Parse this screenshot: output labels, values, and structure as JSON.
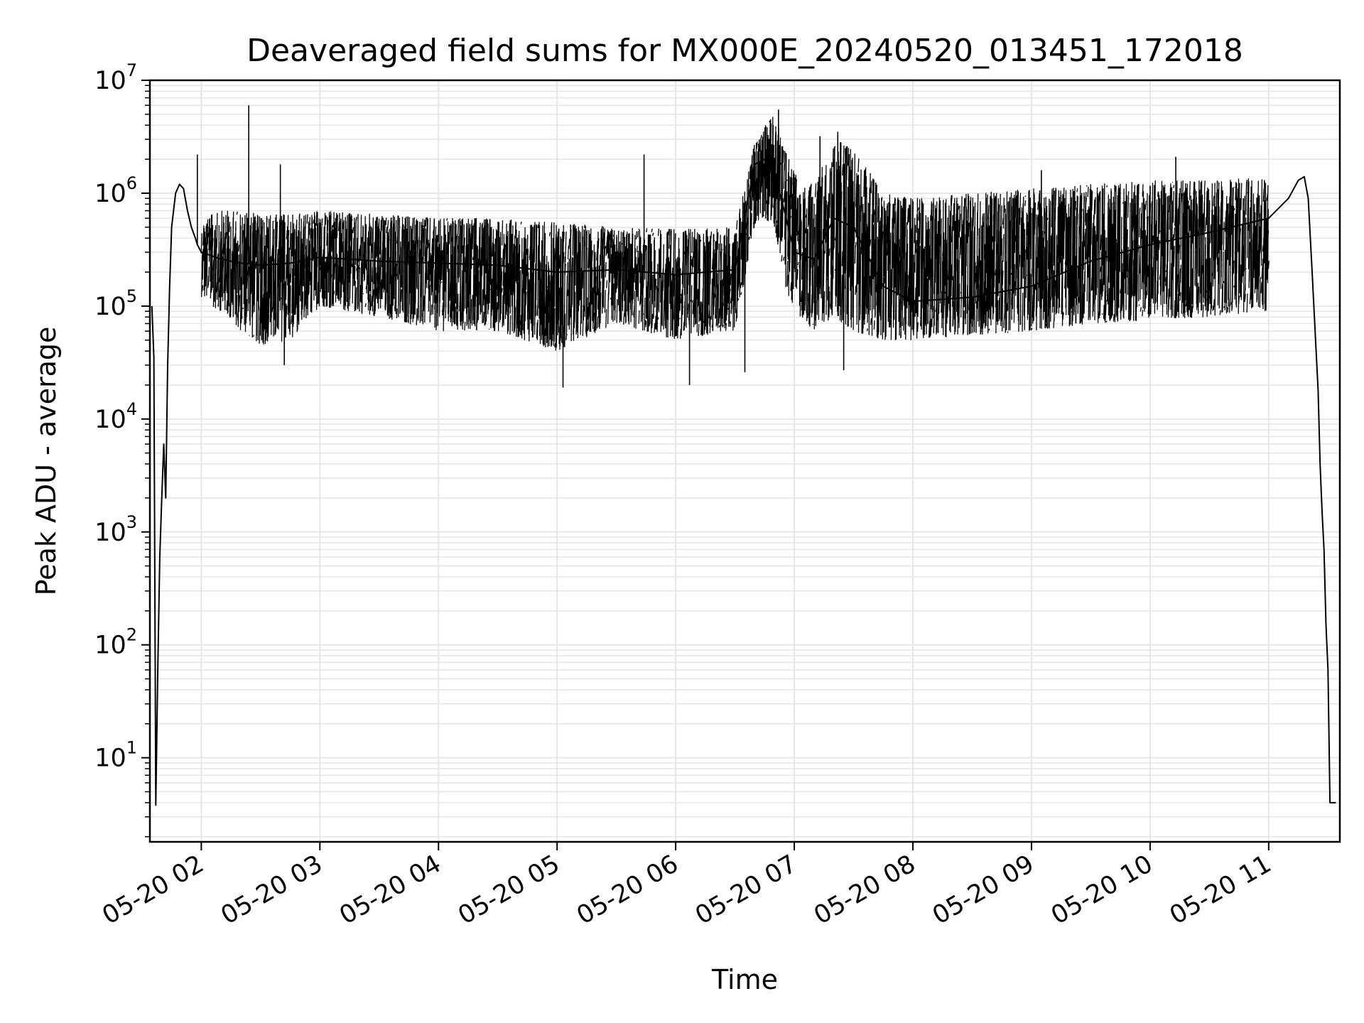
{
  "chart_data": {
    "type": "line",
    "title": "Deaveraged field sums for MX000E_20240520_013451_172018",
    "xlabel": "Time",
    "ylabel": "Peak ADU - average",
    "yscale": "log",
    "ylim": [
      1.8,
      10000000
    ],
    "xlim": [
      "2024-05-20 01:34",
      "2024-05-20 11:36"
    ],
    "grid": true,
    "line_color": "#000000",
    "grid_color": "#e6e6e6",
    "x_ticks": [
      {
        "t": "2024-05-20 02:00",
        "label": "05-20 02"
      },
      {
        "t": "2024-05-20 03:00",
        "label": "05-20 03"
      },
      {
        "t": "2024-05-20 04:00",
        "label": "05-20 04"
      },
      {
        "t": "2024-05-20 05:00",
        "label": "05-20 05"
      },
      {
        "t": "2024-05-20 06:00",
        "label": "05-20 06"
      },
      {
        "t": "2024-05-20 07:00",
        "label": "05-20 07"
      },
      {
        "t": "2024-05-20 08:00",
        "label": "05-20 08"
      },
      {
        "t": "2024-05-20 09:00",
        "label": "05-20 09"
      },
      {
        "t": "2024-05-20 10:00",
        "label": "05-20 10"
      },
      {
        "t": "2024-05-20 11:00",
        "label": "05-20 11"
      }
    ],
    "y_ticks": [
      {
        "value": 10,
        "base": "10",
        "exp": "1"
      },
      {
        "value": 100,
        "base": "10",
        "exp": "2"
      },
      {
        "value": 1000,
        "base": "10",
        "exp": "3"
      },
      {
        "value": 10000,
        "base": "10",
        "exp": "4"
      },
      {
        "value": 100000,
        "base": "10",
        "exp": "5"
      },
      {
        "value": 1000000,
        "base": "10",
        "exp": "6"
      },
      {
        "value": 10000000,
        "base": "10",
        "exp": "7"
      }
    ],
    "series": [
      {
        "x": [
          "2024-05-20 01:35",
          "2024-05-20 01:36",
          "2024-05-20 01:37",
          "2024-05-20 01:38",
          "2024-05-20 01:39",
          "2024-05-20 01:40",
          "2024-05-20 01:41",
          "2024-05-20 01:42",
          "2024-05-20 01:43",
          "2024-05-20 01:44",
          "2024-05-20 01:45",
          "2024-05-20 01:47",
          "2024-05-20 01:49",
          "2024-05-20 01:51",
          "2024-05-20 01:53",
          "2024-05-20 01:55",
          "2024-05-20 01:57",
          "2024-05-20 01:58",
          "2024-05-20 02:00",
          "2024-05-20 02:05",
          "2024-05-20 02:10",
          "2024-05-20 02:20",
          "2024-05-20 02:30",
          "2024-05-20 02:45",
          "2024-05-20 03:00",
          "2024-05-20 03:30",
          "2024-05-20 04:00",
          "2024-05-20 04:30",
          "2024-05-20 05:00",
          "2024-05-20 05:30",
          "2024-05-20 06:00",
          "2024-05-20 06:30",
          "2024-05-20 06:40",
          "2024-05-20 06:45",
          "2024-05-20 06:50",
          "2024-05-20 06:55",
          "2024-05-20 07:00",
          "2024-05-20 07:10",
          "2024-05-20 07:20",
          "2024-05-20 07:30",
          "2024-05-20 07:45",
          "2024-05-20 08:00",
          "2024-05-20 08:30",
          "2024-05-20 09:00",
          "2024-05-20 09:30",
          "2024-05-20 10:00",
          "2024-05-20 10:30",
          "2024-05-20 11:00",
          "2024-05-20 11:10",
          "2024-05-20 11:15",
          "2024-05-20 11:18",
          "2024-05-20 11:20",
          "2024-05-20 11:22",
          "2024-05-20 11:24",
          "2024-05-20 11:25",
          "2024-05-20 11:26",
          "2024-05-20 11:27",
          "2024-05-20 11:28",
          "2024-05-20 11:29",
          "2024-05-20 11:30",
          "2024-05-20 11:31",
          "2024-05-20 11:32",
          "2024-05-20 11:34"
        ],
        "y": [
          100000,
          35000,
          3.8,
          60,
          600,
          2000,
          6000,
          2000,
          30000,
          150000,
          500000,
          1000000,
          1200000,
          1100000,
          700000,
          500000,
          400000,
          350000,
          300000,
          280000,
          260000,
          240000,
          230000,
          240000,
          270000,
          250000,
          240000,
          230000,
          200000,
          210000,
          190000,
          210000,
          1800000,
          2000000,
          1500000,
          700000,
          300000,
          260000,
          600000,
          500000,
          150000,
          110000,
          120000,
          150000,
          250000,
          350000,
          450000,
          600000,
          900000,
          1300000,
          1400000,
          900000,
          200000,
          40000,
          18000,
          4000,
          1500,
          700,
          150,
          60,
          4,
          4,
          4
        ],
        "band_low": [
          null,
          null,
          null,
          null,
          null,
          null,
          null,
          null,
          null,
          null,
          null,
          null,
          null,
          null,
          null,
          null,
          null,
          null,
          120000,
          100000,
          90000,
          60000,
          45000,
          50000,
          100000,
          80000,
          60000,
          60000,
          40000,
          70000,
          50000,
          60000,
          500000,
          600000,
          500000,
          150000,
          90000,
          60000,
          80000,
          60000,
          50000,
          50000,
          55000,
          60000,
          70000,
          75000,
          80000,
          90000,
          null,
          null,
          null,
          null,
          null,
          null,
          null,
          null,
          null,
          null,
          null,
          null,
          null,
          null,
          null
        ],
        "band_high": [
          null,
          null,
          null,
          null,
          null,
          null,
          null,
          null,
          null,
          null,
          null,
          null,
          null,
          null,
          null,
          null,
          null,
          null,
          600000,
          650000,
          700000,
          700000,
          650000,
          650000,
          700000,
          650000,
          600000,
          600000,
          550000,
          500000,
          480000,
          500000,
          3000000,
          4000000,
          5000000,
          2500000,
          1500000,
          1200000,
          3000000,
          2500000,
          1000000,
          900000,
          1000000,
          1100000,
          1200000,
          1300000,
          1300000,
          1400000,
          null,
          null,
          null,
          null,
          null,
          null,
          null,
          null,
          null,
          null,
          null,
          null,
          null,
          null,
          null
        ],
        "spikes": [
          {
            "t": "2024-05-20 01:58",
            "y": 2200000
          },
          {
            "t": "2024-05-20 02:24",
            "y": 6000000
          },
          {
            "t": "2024-05-20 02:40",
            "y": 1800000
          },
          {
            "t": "2024-05-20 02:42",
            "y": 30000
          },
          {
            "t": "2024-05-20 05:03",
            "y": 19000
          },
          {
            "t": "2024-05-20 05:44",
            "y": 2200000
          },
          {
            "t": "2024-05-20 06:07",
            "y": 20000
          },
          {
            "t": "2024-05-20 06:35",
            "y": 26000
          },
          {
            "t": "2024-05-20 06:48",
            "y": 4500000
          },
          {
            "t": "2024-05-20 06:52",
            "y": 5500000
          },
          {
            "t": "2024-05-20 07:13",
            "y": 3200000
          },
          {
            "t": "2024-05-20 07:22",
            "y": 3500000
          },
          {
            "t": "2024-05-20 07:25",
            "y": 27000
          },
          {
            "t": "2024-05-20 09:05",
            "y": 1600000
          },
          {
            "t": "2024-05-20 10:13",
            "y": 2100000
          },
          {
            "t": "2024-05-20 11:25",
            "y": 18000
          }
        ]
      }
    ]
  }
}
